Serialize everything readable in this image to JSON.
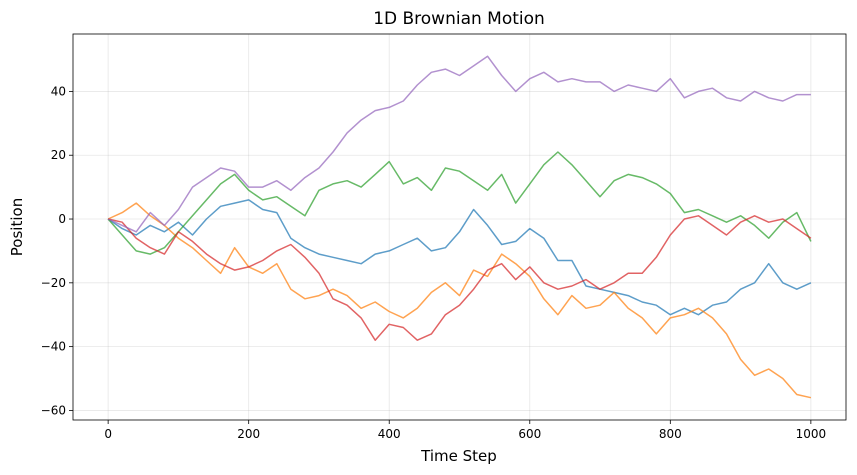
{
  "chart_data": {
    "type": "line",
    "title": "1D Brownian Motion",
    "xlabel": "Time Step",
    "ylabel": "Position",
    "xlim": [
      -50,
      1050
    ],
    "ylim": [
      -63,
      58
    ],
    "xticks": [
      0,
      200,
      400,
      600,
      800,
      1000
    ],
    "yticks": [
      -60,
      -40,
      -20,
      0,
      20,
      40
    ],
    "grid": true,
    "series": [
      {
        "color": "#1f77b4",
        "x": [
          0,
          20,
          40,
          60,
          80,
          100,
          120,
          140,
          160,
          180,
          200,
          220,
          240,
          260,
          280,
          300,
          320,
          340,
          360,
          380,
          400,
          420,
          440,
          460,
          480,
          500,
          520,
          540,
          560,
          580,
          600,
          620,
          640,
          660,
          680,
          700,
          720,
          740,
          760,
          780,
          800,
          820,
          840,
          860,
          880,
          900,
          920,
          940,
          960,
          980,
          1000
        ],
        "y": [
          0,
          -3,
          -5,
          -2,
          -4,
          -1,
          -5,
          0,
          4,
          5,
          6,
          3,
          2,
          -6,
          -9,
          -11,
          -12,
          -13,
          -14,
          -11,
          -10,
          -8,
          -6,
          -10,
          -9,
          -4,
          3,
          -2,
          -8,
          -7,
          -3,
          -6,
          -13,
          -13,
          -21,
          -22,
          -23,
          -24,
          -26,
          -27,
          -30,
          -28,
          -30,
          -27,
          -26,
          -22,
          -20,
          -14,
          -20,
          -22,
          -20
        ]
      },
      {
        "color": "#ff7f0e",
        "x": [
          0,
          20,
          40,
          60,
          80,
          100,
          120,
          140,
          160,
          180,
          200,
          220,
          240,
          260,
          280,
          300,
          320,
          340,
          360,
          380,
          400,
          420,
          440,
          460,
          480,
          500,
          520,
          540,
          560,
          580,
          600,
          620,
          640,
          660,
          680,
          700,
          720,
          740,
          760,
          780,
          800,
          820,
          840,
          860,
          880,
          900,
          920,
          940,
          960,
          980,
          1000
        ],
        "y": [
          0,
          2,
          5,
          1,
          -2,
          -6,
          -9,
          -13,
          -17,
          -9,
          -15,
          -17,
          -14,
          -22,
          -25,
          -24,
          -22,
          -24,
          -28,
          -26,
          -29,
          -31,
          -28,
          -23,
          -20,
          -24,
          -16,
          -18,
          -11,
          -14,
          -18,
          -25,
          -30,
          -24,
          -28,
          -27,
          -23,
          -28,
          -31,
          -36,
          -31,
          -30,
          -28,
          -31,
          -36,
          -44,
          -49,
          -47,
          -50,
          -55,
          -56
        ]
      },
      {
        "color": "#2ca02c",
        "x": [
          0,
          20,
          40,
          60,
          80,
          100,
          120,
          140,
          160,
          180,
          200,
          220,
          240,
          260,
          280,
          300,
          320,
          340,
          360,
          380,
          400,
          420,
          440,
          460,
          480,
          500,
          520,
          540,
          560,
          580,
          600,
          620,
          640,
          660,
          680,
          700,
          720,
          740,
          760,
          780,
          800,
          820,
          840,
          860,
          880,
          900,
          920,
          940,
          960,
          980,
          1000
        ],
        "y": [
          0,
          -5,
          -10,
          -11,
          -9,
          -4,
          1,
          6,
          11,
          14,
          9,
          6,
          7,
          4,
          1,
          9,
          11,
          12,
          10,
          14,
          18,
          11,
          13,
          9,
          16,
          15,
          12,
          9,
          14,
          5,
          11,
          17,
          21,
          17,
          12,
          7,
          12,
          14,
          13,
          11,
          8,
          2,
          3,
          1,
          -1,
          1,
          -2,
          -6,
          -1,
          2,
          -7
        ]
      },
      {
        "color": "#d62728",
        "x": [
          0,
          20,
          40,
          60,
          80,
          100,
          120,
          140,
          160,
          180,
          200,
          220,
          240,
          260,
          280,
          300,
          320,
          340,
          360,
          380,
          400,
          420,
          440,
          460,
          480,
          500,
          520,
          540,
          560,
          580,
          600,
          620,
          640,
          660,
          680,
          700,
          720,
          740,
          760,
          780,
          800,
          820,
          840,
          860,
          880,
          900,
          920,
          940,
          960,
          980,
          1000
        ],
        "y": [
          0,
          -1,
          -6,
          -9,
          -11,
          -4,
          -7,
          -11,
          -14,
          -16,
          -15,
          -13,
          -10,
          -8,
          -12,
          -17,
          -25,
          -27,
          -31,
          -38,
          -33,
          -34,
          -38,
          -36,
          -30,
          -27,
          -22,
          -16,
          -14,
          -19,
          -15,
          -20,
          -22,
          -21,
          -19,
          -22,
          -20,
          -17,
          -17,
          -12,
          -5,
          0,
          1,
          -2,
          -5,
          -1,
          1,
          -1,
          0,
          -3,
          -6
        ]
      },
      {
        "color": "#9467bd",
        "x": [
          0,
          20,
          40,
          60,
          80,
          100,
          120,
          140,
          160,
          180,
          200,
          220,
          240,
          260,
          280,
          300,
          320,
          340,
          360,
          380,
          400,
          420,
          440,
          460,
          480,
          500,
          520,
          540,
          560,
          580,
          600,
          620,
          640,
          660,
          680,
          700,
          720,
          740,
          760,
          780,
          800,
          820,
          840,
          860,
          880,
          900,
          920,
          940,
          960,
          980,
          1000
        ],
        "y": [
          0,
          -2,
          -4,
          2,
          -2,
          3,
          10,
          13,
          16,
          15,
          10,
          10,
          12,
          9,
          13,
          16,
          21,
          27,
          31,
          34,
          35,
          37,
          42,
          46,
          47,
          45,
          48,
          51,
          45,
          40,
          44,
          46,
          43,
          44,
          43,
          43,
          40,
          42,
          41,
          40,
          44,
          38,
          40,
          41,
          38,
          37,
          40,
          38,
          37,
          39,
          39
        ]
      }
    ]
  }
}
